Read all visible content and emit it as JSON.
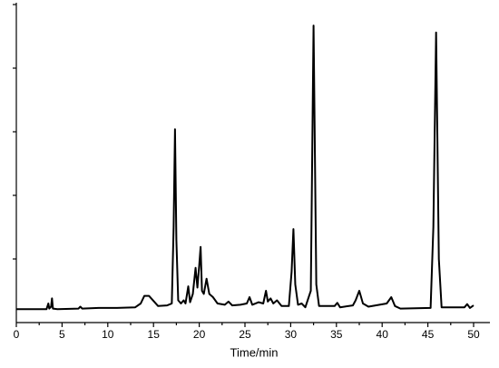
{
  "chart_data": {
    "type": "line",
    "x_label": "Time/min",
    "x": [
      0,
      3.3,
      3.5,
      3.6,
      3.8,
      3.9,
      4.0,
      4.5,
      6.8,
      7,
      7.2,
      9,
      11,
      13,
      13.6,
      14,
      14.5,
      15,
      15.5,
      16.5,
      17.0,
      17.2,
      17.35,
      17.5,
      17.7,
      18.0,
      18.3,
      18.5,
      18.8,
      19.0,
      19.3,
      19.6,
      19.8,
      20.0,
      20.15,
      20.3,
      20.5,
      20.8,
      21.1,
      21.5,
      22,
      22.8,
      23.2,
      23.6,
      24.5,
      25.2,
      25.5,
      25.8,
      26.5,
      27.0,
      27.3,
      27.5,
      27.8,
      28.1,
      28.5,
      29,
      29.8,
      30.1,
      30.3,
      30.5,
      30.8,
      31.2,
      31.6,
      32.2,
      32.5,
      32.8,
      33.1,
      34.8,
      35.1,
      35.4,
      36.8,
      37.1,
      37.5,
      37.9,
      38.5,
      40.5,
      41,
      41.4,
      42,
      45.3,
      45.6,
      45.9,
      46.2,
      46.5,
      49,
      49.3,
      49.6,
      50
    ],
    "series": [
      {
        "color": "#000000",
        "values": [
          0.21,
          0.21,
          0.3,
          0.22,
          0.25,
          0.38,
          0.22,
          0.21,
          0.22,
          0.25,
          0.22,
          0.23,
          0.23,
          0.24,
          0.3,
          0.42,
          0.42,
          0.34,
          0.26,
          0.27,
          0.3,
          1.5,
          3.04,
          1.3,
          0.35,
          0.3,
          0.35,
          0.3,
          0.57,
          0.32,
          0.45,
          0.86,
          0.55,
          0.9,
          1.19,
          0.5,
          0.45,
          0.69,
          0.45,
          0.4,
          0.3,
          0.28,
          0.33,
          0.27,
          0.28,
          0.3,
          0.4,
          0.28,
          0.32,
          0.3,
          0.5,
          0.33,
          0.38,
          0.3,
          0.35,
          0.26,
          0.26,
          0.8,
          1.47,
          0.6,
          0.28,
          0.3,
          0.24,
          0.5,
          4.67,
          0.6,
          0.26,
          0.26,
          0.31,
          0.24,
          0.27,
          0.35,
          0.5,
          0.3,
          0.25,
          0.3,
          0.4,
          0.26,
          0.22,
          0.23,
          1.5,
          4.56,
          1.0,
          0.24,
          0.24,
          0.29,
          0.23,
          0.27
        ]
      }
    ],
    "xlim": [
      0,
      50
    ],
    "xticks": [
      0,
      5,
      10,
      15,
      20,
      25,
      30,
      35,
      40,
      45,
      50
    ],
    "ylim": [
      0,
      5
    ],
    "yticks": [
      {
        "value": 1,
        "label": null
      },
      {
        "value": 2,
        "label": null
      },
      {
        "value": 3,
        "label": null
      },
      {
        "value": 4,
        "label": null
      },
      {
        "value": 5,
        "label": null
      }
    ]
  }
}
